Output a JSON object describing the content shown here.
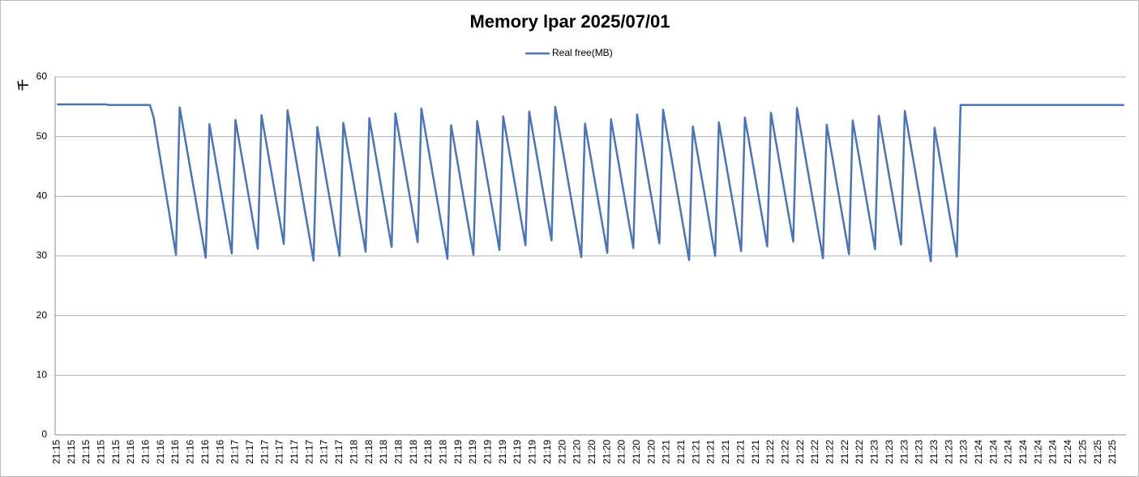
{
  "chart_data": {
    "type": "line",
    "title": "Memory lpar  2025/07/01",
    "y_label": "千",
    "categories": [
      "21:15",
      null,
      null,
      null,
      "21:15",
      null,
      null,
      null,
      "21:15",
      null,
      null,
      null,
      "21:15",
      null,
      null,
      null,
      "21:15",
      null,
      null,
      null,
      "21:16",
      null,
      null,
      null,
      "21:16",
      null,
      null,
      null,
      "21:16",
      null,
      null,
      null,
      "21:16",
      null,
      null,
      null,
      "21:16",
      null,
      null,
      null,
      "21:16",
      null,
      null,
      null,
      "21:16",
      null,
      null,
      null,
      "21:17",
      null,
      null,
      null,
      "21:17",
      null,
      null,
      null,
      "21:17",
      null,
      null,
      null,
      "21:17",
      null,
      null,
      null,
      "21:17",
      null,
      null,
      null,
      "21:17",
      null,
      null,
      null,
      "21:17",
      null,
      null,
      null,
      "21:17",
      null,
      null,
      null,
      "21:18",
      null,
      null,
      null,
      "21:18",
      null,
      null,
      null,
      "21:18",
      null,
      null,
      null,
      "21:18",
      null,
      null,
      null,
      "21:18",
      null,
      null,
      null,
      "21:18",
      null,
      null,
      null,
      "21:18",
      null,
      null,
      null,
      "21:19",
      null,
      null,
      null,
      "21:19",
      null,
      null,
      null,
      "21:19",
      null,
      null,
      null,
      "21:19",
      null,
      null,
      null,
      "21:19",
      null,
      null,
      null,
      "21:19",
      null,
      null,
      null,
      "21:19",
      null,
      null,
      null,
      "21:20",
      null,
      null,
      null,
      "21:20",
      null,
      null,
      null,
      "21:20",
      null,
      null,
      null,
      "21:20",
      null,
      null,
      null,
      "21:20",
      null,
      null,
      null,
      "21:20",
      null,
      null,
      null,
      "21:20",
      null,
      null,
      null,
      "21:21",
      null,
      null,
      null,
      "21:21",
      null,
      null,
      null,
      "21:21",
      null,
      null,
      null,
      "21:21",
      null,
      null,
      null,
      "21:21",
      null,
      null,
      null,
      "21:21",
      null,
      null,
      null,
      "21:21",
      null,
      null,
      null,
      "21:22",
      null,
      null,
      null,
      "21:22",
      null,
      null,
      null,
      "21:22",
      null,
      null,
      null,
      "21:22",
      null,
      null,
      null,
      "21:22",
      null,
      null,
      null,
      "21:22",
      null,
      null,
      null,
      "21:22",
      null,
      null,
      null,
      "21:23",
      null,
      null,
      null,
      "21:23",
      null,
      null,
      null,
      "21:23",
      null,
      null,
      null,
      "21:23",
      null,
      null,
      null,
      "21:23",
      null,
      null,
      null,
      "21:23",
      null,
      null,
      null,
      "21:23",
      null,
      null,
      null,
      "21:24",
      null,
      null,
      null,
      "21:24",
      null,
      null,
      null,
      "21:24",
      null,
      null,
      null,
      "21:24",
      null,
      null,
      null,
      "21:24",
      null,
      null,
      null,
      "21:24",
      null,
      null,
      null,
      "21:24",
      null,
      null,
      null,
      "21:25",
      null,
      null,
      null,
      "21:25",
      null,
      null,
      null,
      "21:25",
      null,
      null,
      null
    ],
    "series": [
      {
        "name": "Real free(MB)",
        "color": "#4a74b4",
        "values": [
          55.4,
          55.4,
          55.4,
          55.4,
          55.4,
          55.4,
          55.4,
          55.4,
          55.4,
          55.4,
          55.4,
          55.4,
          55.4,
          55.4,
          55.3,
          55.3,
          55.3,
          55.3,
          55.3,
          55.3,
          55.3,
          55.3,
          55.3,
          55.3,
          55.3,
          55.3,
          53.2,
          49.3,
          45.5,
          41.7,
          37.9,
          34.0,
          30.2,
          54.9,
          51.3,
          47.7,
          44.1,
          40.5,
          36.9,
          33.3,
          29.7,
          52.1,
          48.4,
          44.8,
          41.2,
          37.6,
          34.0,
          30.4,
          52.8,
          49.2,
          45.6,
          42.0,
          38.4,
          34.8,
          31.2,
          53.6,
          50.0,
          46.4,
          42.8,
          39.2,
          35.6,
          32.0,
          54.4,
          50.8,
          47.2,
          43.6,
          40.0,
          36.4,
          32.8,
          29.2,
          51.6,
          48.0,
          44.4,
          40.8,
          37.2,
          33.5,
          30.0,
          52.3,
          48.7,
          45.1,
          41.5,
          37.9,
          34.3,
          30.7,
          53.1,
          49.5,
          45.9,
          42.3,
          38.7,
          35.1,
          31.5,
          53.9,
          50.3,
          46.7,
          43.1,
          39.5,
          35.9,
          32.3,
          54.7,
          51.1,
          47.5,
          43.9,
          40.3,
          36.7,
          33.1,
          29.5,
          51.9,
          48.3,
          44.7,
          41.0,
          37.4,
          33.8,
          30.2,
          52.6,
          49.0,
          45.4,
          41.8,
          38.2,
          34.6,
          31.0,
          53.4,
          49.8,
          46.2,
          42.6,
          39.0,
          35.4,
          31.8,
          54.2,
          50.6,
          47.0,
          43.4,
          39.8,
          36.2,
          32.6,
          55.0,
          51.4,
          47.8,
          44.2,
          40.6,
          37.0,
          33.4,
          29.8,
          52.2,
          48.5,
          44.9,
          41.3,
          37.7,
          34.1,
          30.5,
          52.9,
          49.3,
          45.7,
          42.1,
          38.5,
          34.9,
          31.3,
          53.7,
          50.1,
          46.5,
          42.9,
          39.3,
          35.7,
          32.1,
          54.5,
          50.9,
          47.3,
          43.7,
          40.1,
          36.5,
          32.9,
          29.3,
          51.7,
          48.1,
          44.5,
          40.9,
          37.3,
          33.6,
          30.0,
          52.4,
          48.8,
          45.2,
          41.6,
          38.0,
          34.4,
          30.8,
          53.2,
          49.6,
          46.0,
          42.4,
          38.8,
          35.2,
          31.6,
          54.0,
          50.4,
          46.8,
          43.2,
          39.6,
          36.0,
          32.4,
          54.8,
          51.2,
          47.6,
          44.0,
          40.4,
          36.8,
          33.2,
          29.6,
          52.0,
          48.4,
          44.8,
          41.1,
          37.5,
          33.9,
          30.3,
          52.7,
          49.1,
          45.5,
          41.9,
          38.3,
          34.7,
          31.1,
          53.5,
          49.9,
          46.3,
          42.7,
          39.1,
          35.5,
          31.9,
          54.3,
          50.7,
          47.1,
          43.5,
          39.9,
          36.3,
          32.7,
          29.1,
          51.5,
          47.9,
          44.3,
          40.7,
          37.1,
          33.5,
          29.9,
          55.3,
          55.3,
          55.3,
          55.3,
          55.3,
          55.3,
          55.3,
          55.3,
          55.3,
          55.3,
          55.3,
          55.3,
          55.3,
          55.3,
          55.3,
          55.3,
          55.3,
          55.3,
          55.3,
          55.3,
          55.3,
          55.3,
          55.3,
          55.3,
          55.3,
          55.3,
          55.3,
          55.3,
          55.3,
          55.3,
          55.3,
          55.3,
          55.3,
          55.3,
          55.3,
          55.3,
          55.3,
          55.3,
          55.3,
          55.3,
          55.3,
          55.3,
          55.3,
          55.3,
          55.3
        ]
      }
    ],
    "ylim": [
      0,
      60
    ],
    "yticks": [
      0,
      10,
      20,
      30,
      40,
      50,
      60
    ],
    "grid": true,
    "legend": "top"
  }
}
